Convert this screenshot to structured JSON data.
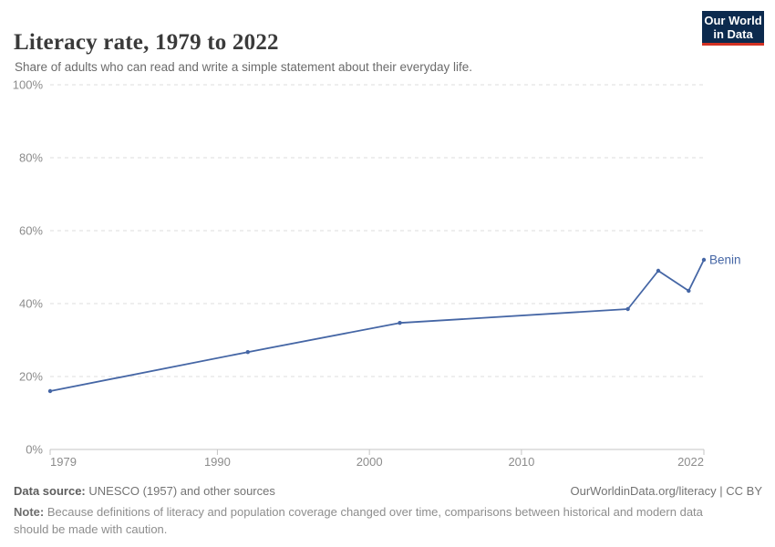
{
  "header": {
    "title": "Literacy rate, 1979 to 2022",
    "subtitle": "Share of adults who can read and write a simple statement about their everyday life."
  },
  "logo": {
    "line1": "Our World",
    "line2": "in Data",
    "bg_color": "#0c2a4e",
    "accent_color": "#d23223"
  },
  "chart_data": {
    "type": "line",
    "title": "Literacy rate, 1979 to 2022",
    "xlabel": "",
    "ylabel": "",
    "xlim": [
      1979,
      2022
    ],
    "ylim": [
      0,
      100
    ],
    "x_tick_values": [
      1979,
      1990,
      2000,
      2010,
      2022
    ],
    "y_tick_values": [
      0,
      20,
      40,
      60,
      80,
      100
    ],
    "y_tick_labels": [
      "0%",
      "20%",
      "40%",
      "60%",
      "80%",
      "100%"
    ],
    "grid": "horizontal-dashed",
    "legend_position": "end-of-line-label",
    "series": [
      {
        "name": "Benin",
        "color": "#4566a5",
        "x": [
          1979,
          1992,
          2002,
          2017,
          2019,
          2021,
          2022
        ],
        "values": [
          16,
          26.7,
          34.7,
          38.5,
          49,
          43.5,
          52
        ]
      }
    ]
  },
  "footer": {
    "source_label": "Data source:",
    "source_text": "UNESCO (1957) and other sources",
    "link_text": "OurWorldinData.org/literacy | CC BY",
    "note_label": "Note:",
    "note_text": "Because definitions of literacy and population coverage changed over time, comparisons between historical and modern data should be made with caution."
  },
  "colors": {
    "grid": "#dcdcdc",
    "axis": "#c4c4c4",
    "tick_label": "#8c8c8c",
    "title": "#3a3a3a",
    "subtitle": "#6b6b6b"
  }
}
